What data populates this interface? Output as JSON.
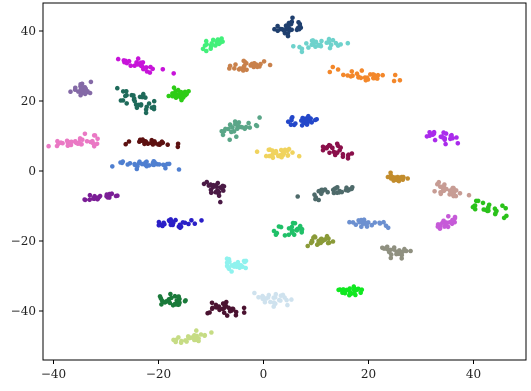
{
  "chart_data": {
    "type": "scatter",
    "title": "",
    "xlabel": "",
    "ylabel": "",
    "xlim": [
      -42,
      50
    ],
    "ylim": [
      -54,
      48
    ],
    "xticks": [
      -40,
      -20,
      0,
      20,
      40
    ],
    "yticks": [
      -40,
      -20,
      0,
      20,
      40
    ],
    "xtick_labels": [
      "−40",
      "−20",
      "0",
      "20",
      "40"
    ],
    "ytick_labels": [
      "−40",
      "−20",
      "0",
      "20",
      "40"
    ],
    "grid": false,
    "legend": "none",
    "series": [
      {
        "color": "#1f3f6e",
        "cx": 4.5,
        "cy": 41.0,
        "sx": 1.2,
        "sy": 2.0,
        "n": 30
      },
      {
        "color": "#6ed2cc",
        "cx": 11.0,
        "cy": 36.5,
        "sx": 2.2,
        "sy": 1.5,
        "n": 28
      },
      {
        "color": "#42f07a",
        "cx": -9.5,
        "cy": 36.0,
        "sx": 1.2,
        "sy": 1.3,
        "n": 24
      },
      {
        "color": "#c9814b",
        "cx": -3.0,
        "cy": 30.0,
        "sx": 2.3,
        "sy": 1.0,
        "n": 26
      },
      {
        "color": "#c713d9",
        "cx": -24.0,
        "cy": 30.5,
        "sx": 2.5,
        "sy": 1.0,
        "n": 26
      },
      {
        "color": "#f3872a",
        "cx": 20.0,
        "cy": 27.0,
        "sx": 3.0,
        "sy": 1.2,
        "n": 30
      },
      {
        "color": "#8469a6",
        "cx": -34.5,
        "cy": 23.0,
        "sx": 1.1,
        "sy": 1.8,
        "n": 24
      },
      {
        "color": "#1e6a5a",
        "cx": -24.0,
        "cy": 20.0,
        "sx": 2.0,
        "sy": 2.0,
        "n": 30
      },
      {
        "color": "#2dcc16",
        "cx": -16.0,
        "cy": 22.0,
        "sx": 1.0,
        "sy": 1.5,
        "n": 24
      },
      {
        "color": "#2347c9",
        "cx": 8.0,
        "cy": 14.5,
        "sx": 1.5,
        "sy": 1.2,
        "n": 26
      },
      {
        "color": "#5aa688",
        "cx": -5.0,
        "cy": 12.0,
        "sx": 1.8,
        "sy": 2.0,
        "n": 28
      },
      {
        "color": "#ea78c4",
        "cx": -35.0,
        "cy": 8.5,
        "sx": 2.6,
        "sy": 1.3,
        "n": 32
      },
      {
        "color": "#5c1010",
        "cx": -21.0,
        "cy": 8.0,
        "sx": 2.3,
        "sy": 0.9,
        "n": 28
      },
      {
        "color": "#aa2bec",
        "cx": 34.5,
        "cy": 9.5,
        "sx": 1.5,
        "sy": 1.2,
        "n": 24
      },
      {
        "color": "#8a0f4a",
        "cx": 14.0,
        "cy": 6.0,
        "sx": 1.5,
        "sy": 1.2,
        "n": 24
      },
      {
        "color": "#f0d35e",
        "cx": 3.5,
        "cy": 5.0,
        "sx": 2.0,
        "sy": 1.2,
        "n": 28
      },
      {
        "color": "#4f7fd0",
        "cx": -22.0,
        "cy": 2.0,
        "sx": 3.0,
        "sy": 0.9,
        "n": 32
      },
      {
        "color": "#c28c2c",
        "cx": 25.0,
        "cy": -2.0,
        "sx": 1.2,
        "sy": 1.5,
        "n": 22
      },
      {
        "color": "#4a1a45",
        "cx": -9.5,
        "cy": -5.0,
        "sx": 1.3,
        "sy": 1.6,
        "n": 24
      },
      {
        "color": "#4e6a6a",
        "cx": 13.0,
        "cy": -6.0,
        "sx": 2.5,
        "sy": 1.0,
        "n": 28
      },
      {
        "color": "#c79c94",
        "cx": 35.0,
        "cy": -5.5,
        "sx": 2.0,
        "sy": 1.3,
        "n": 26
      },
      {
        "color": "#7b1e96",
        "cx": -31.0,
        "cy": -7.5,
        "sx": 2.5,
        "sy": 0.7,
        "n": 26
      },
      {
        "color": "#2ac21a",
        "cx": 43.5,
        "cy": -11.0,
        "sx": 1.8,
        "sy": 1.2,
        "n": 22
      },
      {
        "color": "#2a1fc7",
        "cx": -16.5,
        "cy": -15.0,
        "sx": 2.0,
        "sy": 1.0,
        "n": 26
      },
      {
        "color": "#6c90d0",
        "cx": 20.0,
        "cy": -15.0,
        "sx": 2.0,
        "sy": 1.2,
        "n": 24
      },
      {
        "color": "#c65ad8",
        "cx": 35.0,
        "cy": -15.0,
        "sx": 1.5,
        "sy": 1.2,
        "n": 22
      },
      {
        "color": "#20c068",
        "cx": 5.0,
        "cy": -16.5,
        "sx": 1.8,
        "sy": 1.5,
        "n": 24
      },
      {
        "color": "#8a9a38",
        "cx": 10.5,
        "cy": -20.0,
        "sx": 1.3,
        "sy": 1.5,
        "n": 22
      },
      {
        "color": "#8f9080",
        "cx": 25.0,
        "cy": -23.0,
        "sx": 1.3,
        "sy": 1.5,
        "n": 22
      },
      {
        "color": "#8ff2ee",
        "cx": -5.5,
        "cy": -26.5,
        "sx": 1.5,
        "sy": 1.8,
        "n": 28
      },
      {
        "color": "#10e820",
        "cx": 17.0,
        "cy": -34.5,
        "sx": 1.2,
        "sy": 1.2,
        "n": 22
      },
      {
        "color": "#1a7a3a",
        "cx": -17.0,
        "cy": -37.0,
        "sx": 1.3,
        "sy": 1.6,
        "n": 26
      },
      {
        "color": "#cfe2ee",
        "cx": 2.0,
        "cy": -36.5,
        "sx": 1.5,
        "sy": 1.5,
        "n": 24
      },
      {
        "color": "#4a1230",
        "cx": -7.5,
        "cy": -39.5,
        "sx": 1.8,
        "sy": 1.6,
        "n": 28
      },
      {
        "color": "#c6dc84",
        "cx": -13.5,
        "cy": -47.5,
        "sx": 2.0,
        "sy": 1.0,
        "n": 26
      }
    ]
  }
}
